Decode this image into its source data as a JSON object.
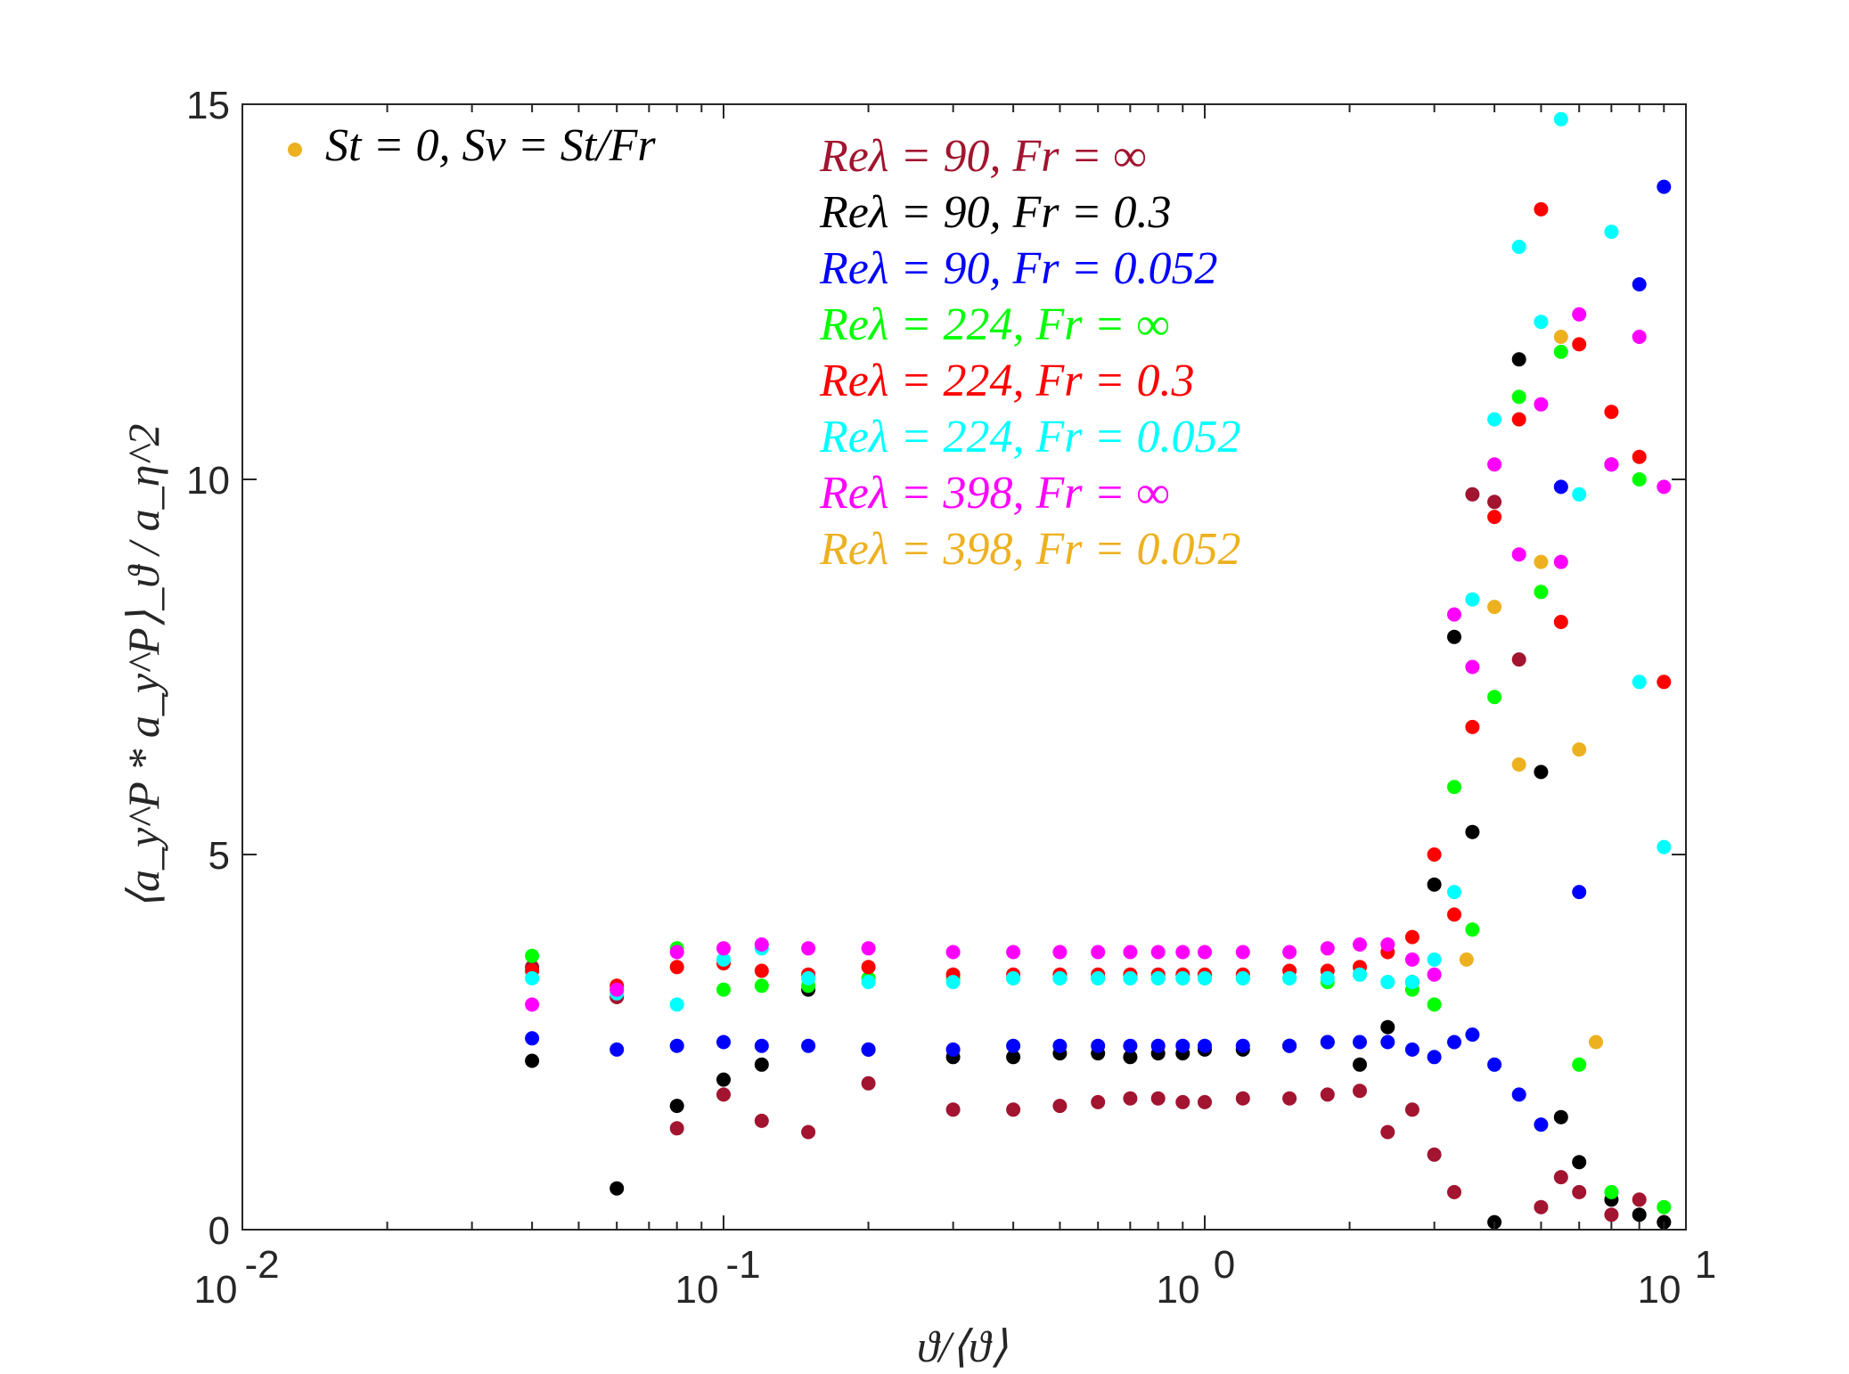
{
  "chart_data": {
    "type": "scatter",
    "title": "",
    "xscale": "log",
    "xlim": [
      0.01,
      10
    ],
    "ylim": [
      0,
      15
    ],
    "xlabel": "ϑ/⟨ϑ⟩",
    "ylabel": "⟨a_y^P * a_y^P⟩_ϑ / a_η^2",
    "xticks": [
      0.01,
      0.1,
      1,
      10
    ],
    "xtick_labels": [
      {
        "base": "10",
        "exp": "-2"
      },
      {
        "base": "10",
        "exp": "-1"
      },
      {
        "base": "10",
        "exp": "0"
      },
      {
        "base": "10",
        "exp": "1"
      }
    ],
    "yticks": [
      0,
      5,
      10,
      15
    ],
    "ytick_labels": [
      "0",
      "5",
      "10",
      "15"
    ],
    "marker_legend": {
      "text": "St = 0, Sv = St/Fr",
      "marker_color": "#EDB120",
      "position": "top-left"
    },
    "series": [
      {
        "name": "Reλ = 90, Fr = ∞",
        "label": "Re_λ = 90, Fr = ∞",
        "color": "#A2142F",
        "x": [
          0.04,
          0.06,
          0.08,
          0.1,
          0.12,
          0.15,
          0.2,
          0.3,
          0.4,
          0.5,
          0.6,
          0.7,
          0.8,
          0.9,
          1.0,
          1.2,
          1.5,
          1.8,
          2.1,
          2.4,
          2.7,
          3.0,
          3.3,
          3.6,
          4.0,
          4.5,
          5.0,
          5.5,
          6.0,
          7.0,
          8.0,
          9.0
        ],
        "values": [
          3.5,
          3.1,
          1.35,
          1.8,
          1.45,
          1.3,
          1.95,
          1.6,
          1.6,
          1.65,
          1.7,
          1.75,
          1.75,
          1.7,
          1.7,
          1.75,
          1.75,
          1.8,
          1.85,
          1.3,
          1.6,
          1.0,
          0.5,
          9.8,
          9.7,
          7.6,
          0.3,
          0.7,
          0.5,
          0.2,
          0.4,
          0.1
        ]
      },
      {
        "name": "Reλ = 90, Fr = 0.3",
        "label": "Re_λ = 90, Fr = 0.3",
        "color": "#000000",
        "x": [
          0.04,
          0.06,
          0.08,
          0.1,
          0.12,
          0.15,
          0.2,
          0.3,
          0.4,
          0.5,
          0.6,
          0.7,
          0.8,
          0.9,
          1.0,
          1.2,
          1.5,
          1.8,
          2.1,
          2.4,
          2.7,
          3.0,
          3.3,
          3.6,
          4.0,
          4.5,
          5.0,
          5.5,
          6.0,
          7.0,
          8.0,
          9.0
        ],
        "values": [
          2.25,
          0.55,
          1.65,
          2.0,
          2.2,
          3.2,
          2.4,
          2.3,
          2.3,
          2.35,
          2.35,
          2.3,
          2.35,
          2.35,
          2.4,
          2.4,
          2.45,
          2.5,
          2.2,
          2.7,
          3.3,
          4.6,
          7.9,
          5.3,
          0.1,
          11.6,
          6.1,
          1.5,
          0.9,
          0.4,
          0.2,
          0.1
        ]
      },
      {
        "name": "Reλ = 90, Fr = 0.052",
        "label": "Re_λ = 90, Fr = 0.052",
        "color": "#0000FF",
        "x": [
          0.04,
          0.06,
          0.08,
          0.1,
          0.12,
          0.15,
          0.2,
          0.3,
          0.4,
          0.5,
          0.6,
          0.7,
          0.8,
          0.9,
          1.0,
          1.2,
          1.5,
          1.8,
          2.1,
          2.4,
          2.7,
          3.0,
          3.3,
          3.6,
          4.0,
          4.5,
          5.0,
          5.5,
          6.0,
          7.0,
          8.0,
          9.0
        ],
        "values": [
          2.55,
          2.4,
          2.45,
          2.5,
          2.45,
          2.45,
          2.4,
          2.4,
          2.45,
          2.45,
          2.45,
          2.45,
          2.45,
          2.45,
          2.45,
          2.45,
          2.45,
          2.5,
          2.5,
          2.5,
          2.4,
          2.3,
          2.5,
          2.6,
          2.2,
          1.8,
          1.4,
          9.9,
          4.5,
          10.2,
          12.6,
          13.9
        ]
      },
      {
        "name": "Reλ = 224, Fr = ∞",
        "label": "Re_λ = 224, Fr = ∞",
        "color": "#00FF00",
        "x": [
          0.04,
          0.06,
          0.08,
          0.1,
          0.12,
          0.15,
          0.2,
          0.3,
          0.4,
          0.5,
          0.6,
          0.7,
          0.8,
          0.9,
          1.0,
          1.2,
          1.5,
          1.8,
          2.1,
          2.4,
          2.7,
          3.0,
          3.3,
          3.6,
          4.0,
          4.5,
          5.0,
          5.5,
          6.0,
          7.0,
          8.0,
          9.0
        ],
        "values": [
          3.65,
          3.2,
          3.75,
          3.2,
          3.25,
          3.25,
          3.35,
          3.35,
          3.35,
          3.35,
          3.35,
          3.35,
          3.35,
          3.35,
          3.35,
          3.35,
          3.35,
          3.3,
          3.4,
          3.3,
          3.2,
          3.0,
          5.9,
          4.0,
          7.1,
          11.1,
          8.5,
          11.7,
          2.2,
          0.5,
          10.0,
          0.3
        ]
      },
      {
        "name": "Reλ = 224, Fr = 0.3",
        "label": "Re_λ = 224, Fr = 0.3",
        "color": "#FF0000",
        "x": [
          0.04,
          0.06,
          0.08,
          0.1,
          0.12,
          0.15,
          0.2,
          0.3,
          0.4,
          0.5,
          0.6,
          0.7,
          0.8,
          0.9,
          1.0,
          1.2,
          1.5,
          1.8,
          2.1,
          2.4,
          2.7,
          3.0,
          3.3,
          3.6,
          4.0,
          4.5,
          5.0,
          5.5,
          6.0,
          7.0,
          8.0,
          9.0
        ],
        "values": [
          3.45,
          3.25,
          3.5,
          3.55,
          3.45,
          3.4,
          3.5,
          3.4,
          3.4,
          3.4,
          3.4,
          3.4,
          3.4,
          3.4,
          3.4,
          3.4,
          3.45,
          3.45,
          3.5,
          3.7,
          3.9,
          5.0,
          4.2,
          6.7,
          9.5,
          10.8,
          13.6,
          8.1,
          11.8,
          10.9,
          10.3,
          7.3
        ]
      },
      {
        "name": "Reλ = 224, Fr = 0.052",
        "label": "Re_λ = 224, Fr = 0.052",
        "color": "#00FFFF",
        "x": [
          0.04,
          0.06,
          0.08,
          0.1,
          0.12,
          0.15,
          0.2,
          0.3,
          0.4,
          0.5,
          0.6,
          0.7,
          0.8,
          0.9,
          1.0,
          1.2,
          1.5,
          1.8,
          2.1,
          2.4,
          2.7,
          3.0,
          3.3,
          3.6,
          4.0,
          4.5,
          5.0,
          5.5,
          6.0,
          7.0,
          8.0,
          9.0
        ],
        "values": [
          3.35,
          3.15,
          3.0,
          3.6,
          3.75,
          3.35,
          3.3,
          3.3,
          3.35,
          3.35,
          3.35,
          3.35,
          3.35,
          3.35,
          3.35,
          3.35,
          3.35,
          3.35,
          3.4,
          3.3,
          3.3,
          3.6,
          4.5,
          8.4,
          10.8,
          13.1,
          12.1,
          14.8,
          9.8,
          13.3,
          7.3,
          5.1
        ]
      },
      {
        "name": "Reλ = 398, Fr = ∞",
        "label": "Re_λ = 398, Fr = ∞",
        "color": "#FF00FF",
        "x": [
          0.04,
          0.06,
          0.08,
          0.1,
          0.12,
          0.15,
          0.2,
          0.3,
          0.4,
          0.5,
          0.6,
          0.7,
          0.8,
          0.9,
          1.0,
          1.2,
          1.5,
          1.8,
          2.1,
          2.4,
          2.7,
          3.0,
          3.3,
          3.6,
          4.0,
          4.5,
          5.0,
          5.5,
          6.0,
          7.0,
          8.0,
          9.0
        ],
        "values": [
          3.0,
          3.2,
          3.7,
          3.75,
          3.8,
          3.75,
          3.75,
          3.7,
          3.7,
          3.7,
          3.7,
          3.7,
          3.7,
          3.7,
          3.7,
          3.7,
          3.7,
          3.75,
          3.8,
          3.8,
          3.6,
          3.4,
          8.2,
          7.5,
          10.2,
          9.0,
          11.0,
          8.9,
          12.2,
          10.2,
          11.9,
          9.9
        ]
      },
      {
        "name": "Reλ = 398, Fr = 0.052",
        "label": "Re_λ = 398, Fr = 0.052",
        "color": "#EDB120",
        "x": [
          3.5,
          4.0,
          4.5,
          5.0,
          5.5,
          6.0,
          6.5
        ],
        "values": [
          3.6,
          8.3,
          6.2,
          8.9,
          11.9,
          6.4,
          2.5
        ]
      }
    ]
  }
}
